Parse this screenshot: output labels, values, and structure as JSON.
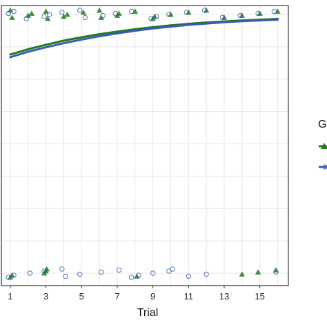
{
  "chart_data": {
    "type": "line",
    "xlabel": "Trial",
    "x_ticks": [
      1,
      3,
      5,
      7,
      9,
      11,
      13,
      15
    ],
    "xlim": [
      0.5,
      16.6
    ],
    "ylim": [
      0,
      1
    ],
    "y_gridlines": [
      0.0,
      0.125,
      0.25,
      0.375,
      0.5,
      0.625,
      0.75,
      0.875,
      1.0
    ],
    "grid": true,
    "legend_title": "G",
    "legend_placement": "right",
    "series": [
      {
        "color": "#1f7a1f",
        "marker": "triangle",
        "curve": {
          "x": [
            1,
            2,
            3,
            4,
            5,
            6,
            7,
            8,
            9,
            10,
            11,
            12,
            13,
            14,
            15,
            16
          ],
          "y": [
            0.845,
            0.866,
            0.883,
            0.899,
            0.912,
            0.924,
            0.934,
            0.943,
            0.951,
            0.958,
            0.964,
            0.969,
            0.973,
            0.977,
            0.98,
            0.983
          ]
        },
        "observations": [
          {
            "x": 1,
            "y": 1
          },
          {
            "x": 1.1,
            "y": 1
          },
          {
            "x": 2,
            "y": 1
          },
          {
            "x": 2.2,
            "y": 1
          },
          {
            "x": 3,
            "y": 1
          },
          {
            "x": 3.1,
            "y": 1
          },
          {
            "x": 4,
            "y": 1
          },
          {
            "x": 4.2,
            "y": 1
          },
          {
            "x": 5.1,
            "y": 1
          },
          {
            "x": 6,
            "y": 1
          },
          {
            "x": 6.1,
            "y": 1
          },
          {
            "x": 7,
            "y": 1
          },
          {
            "x": 7.1,
            "y": 1
          },
          {
            "x": 8,
            "y": 1
          },
          {
            "x": 9,
            "y": 1
          },
          {
            "x": 9.1,
            "y": 1
          },
          {
            "x": 10,
            "y": 1
          },
          {
            "x": 11,
            "y": 1
          },
          {
            "x": 12,
            "y": 1
          },
          {
            "x": 13,
            "y": 1
          },
          {
            "x": 14,
            "y": 1
          },
          {
            "x": 15,
            "y": 1
          },
          {
            "x": 16,
            "y": 1
          },
          {
            "x": 1.0,
            "y": 0
          },
          {
            "x": 1.1,
            "y": 0
          },
          {
            "x": 2.9,
            "y": 0
          },
          {
            "x": 3.0,
            "y": 0
          },
          {
            "x": 3.05,
            "y": 0
          },
          {
            "x": 8.1,
            "y": 0
          },
          {
            "x": 14.0,
            "y": 0
          },
          {
            "x": 14.9,
            "y": 0
          },
          {
            "x": 15.9,
            "y": 0
          }
        ]
      },
      {
        "color": "#3a5bb5",
        "marker": "circle",
        "curve": {
          "x": [
            1,
            2,
            3,
            4,
            5,
            6,
            7,
            8,
            9,
            10,
            11,
            12,
            13,
            14,
            15,
            16
          ],
          "y": [
            0.835,
            0.856,
            0.873,
            0.889,
            0.903,
            0.916,
            0.927,
            0.937,
            0.946,
            0.953,
            0.96,
            0.965,
            0.97,
            0.974,
            0.977,
            0.98
          ]
        },
        "observations": [
          {
            "x": 0.9,
            "y": 1
          },
          {
            "x": 1.2,
            "y": 1
          },
          {
            "x": 1.9,
            "y": 1
          },
          {
            "x": 2.9,
            "y": 1
          },
          {
            "x": 3.2,
            "y": 1
          },
          {
            "x": 3.9,
            "y": 1
          },
          {
            "x": 4.9,
            "y": 1
          },
          {
            "x": 5.2,
            "y": 1
          },
          {
            "x": 6.2,
            "y": 1
          },
          {
            "x": 6.9,
            "y": 1
          },
          {
            "x": 7.8,
            "y": 1
          },
          {
            "x": 8.9,
            "y": 1
          },
          {
            "x": 9.2,
            "y": 1
          },
          {
            "x": 9.9,
            "y": 1
          },
          {
            "x": 10.9,
            "y": 1
          },
          {
            "x": 11.9,
            "y": 1
          },
          {
            "x": 12.9,
            "y": 1
          },
          {
            "x": 13.9,
            "y": 1
          },
          {
            "x": 14.9,
            "y": 1
          },
          {
            "x": 15.8,
            "y": 1
          },
          {
            "x": 0.9,
            "y": 0
          },
          {
            "x": 1.2,
            "y": 0
          },
          {
            "x": 2.1,
            "y": 0
          },
          {
            "x": 2.9,
            "y": 0
          },
          {
            "x": 3.9,
            "y": 0
          },
          {
            "x": 4.1,
            "y": 0
          },
          {
            "x": 4.9,
            "y": 0
          },
          {
            "x": 6.1,
            "y": 0
          },
          {
            "x": 7.1,
            "y": 0
          },
          {
            "x": 7.8,
            "y": 0
          },
          {
            "x": 8.2,
            "y": 0
          },
          {
            "x": 9.0,
            "y": 0
          },
          {
            "x": 9.9,
            "y": 0
          },
          {
            "x": 10.1,
            "y": 0
          },
          {
            "x": 11.0,
            "y": 0
          },
          {
            "x": 12.0,
            "y": 0
          },
          {
            "x": 15.9,
            "y": 0
          }
        ]
      }
    ]
  }
}
